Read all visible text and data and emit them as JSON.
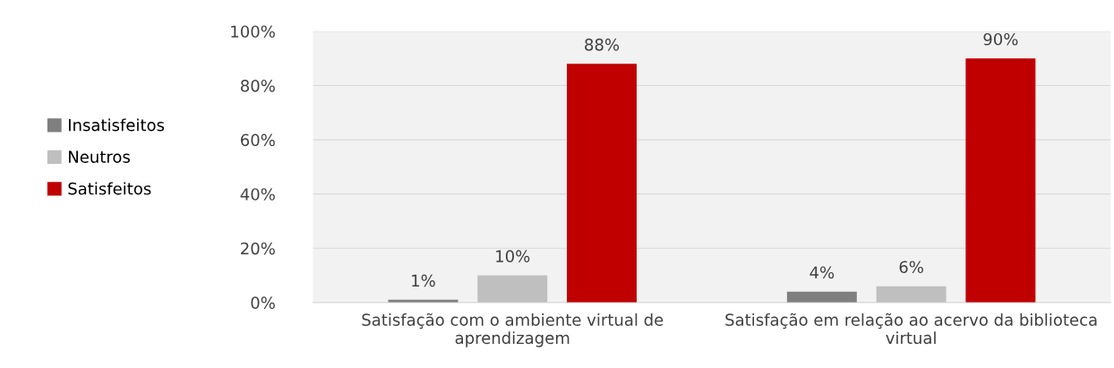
{
  "chart_data": {
    "type": "bar",
    "categories": [
      "Satisfação com o ambiente virtual de aprendizagem",
      "Satisfação em relação ao acervo da biblioteca virtual"
    ],
    "series": [
      {
        "name": "Insatisfeitos",
        "color": "#7f7f7f",
        "values": [
          1,
          4
        ]
      },
      {
        "name": "Neutros",
        "color": "#bfbfbf",
        "values": [
          10,
          6
        ]
      },
      {
        "name": "Satisfeitos",
        "color": "#c00000",
        "values": [
          88,
          90
        ]
      }
    ],
    "ylim": [
      0,
      100
    ],
    "yticks": [
      {
        "value": 0,
        "label": "0%"
      },
      {
        "value": 20,
        "label": "20%"
      },
      {
        "value": 40,
        "label": "40%"
      },
      {
        "value": 60,
        "label": "60%"
      },
      {
        "value": 80,
        "label": "80%"
      },
      {
        "value": 100,
        "label": "100%"
      }
    ],
    "grid": "y",
    "legend": "left",
    "value_labels": [
      [
        "1%",
        "4%"
      ],
      [
        "10%",
        "6%"
      ],
      [
        "88%",
        "90%"
      ]
    ]
  }
}
